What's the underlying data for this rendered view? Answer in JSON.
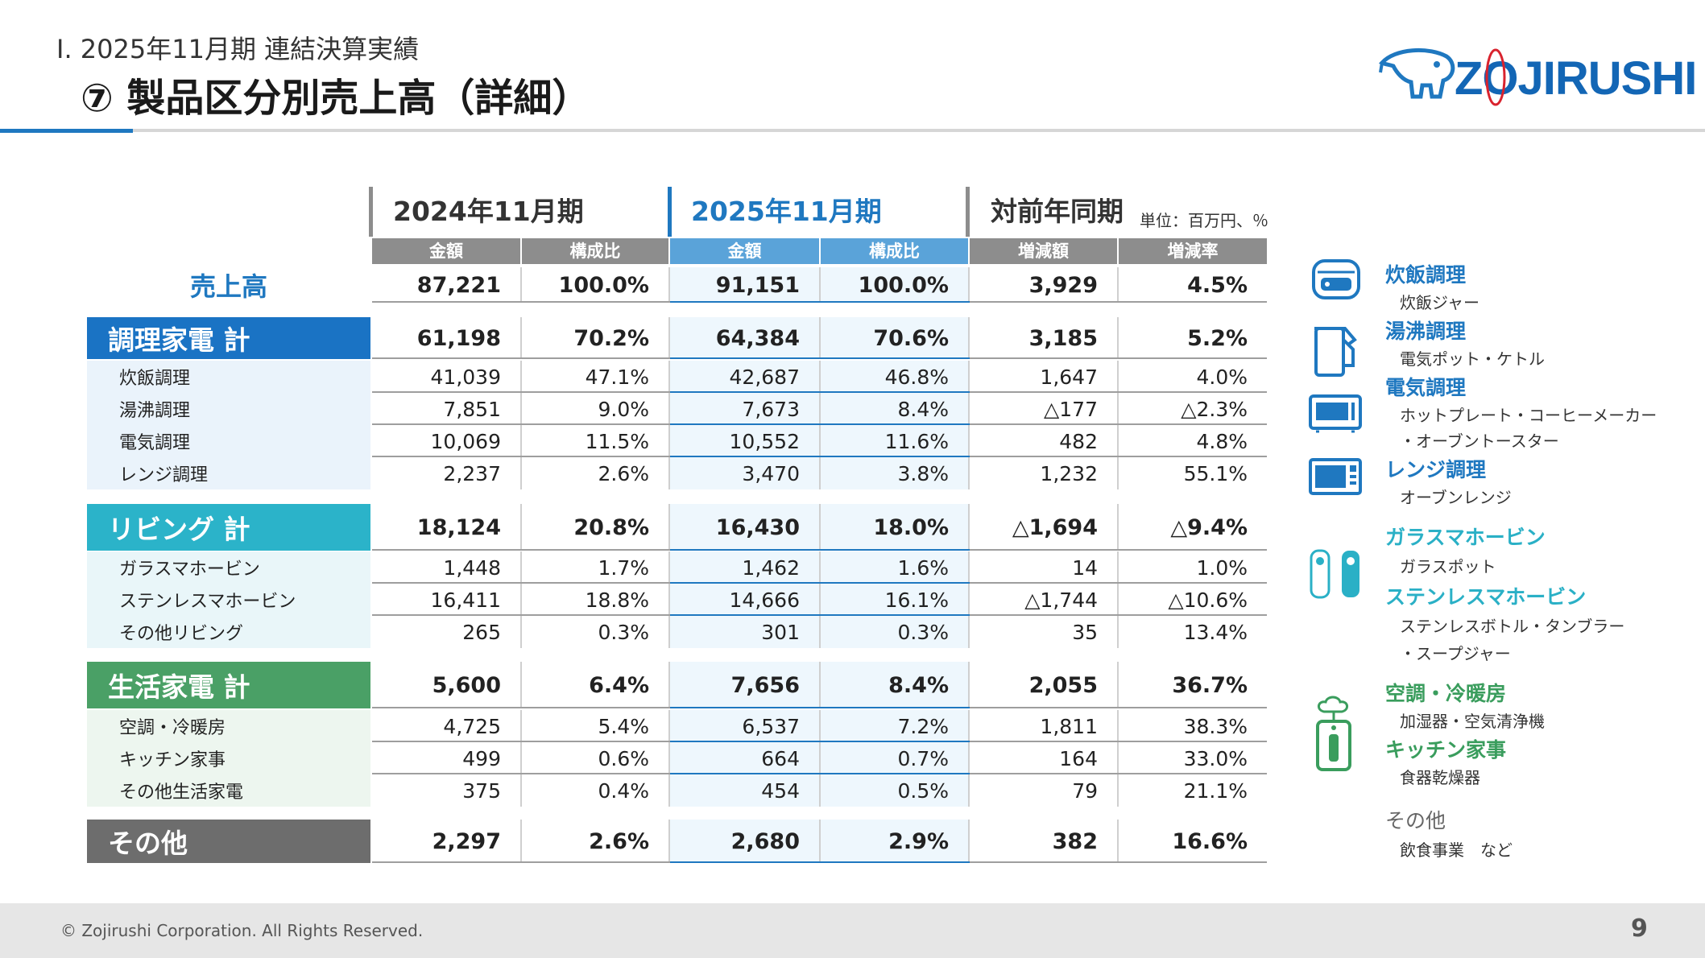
{
  "header": {
    "section": "Ⅰ. 2025年11月期  連結決算実績",
    "title": "⑦ 製品区分別売上高（詳細）",
    "logo_text": "ZOJIRUSHI"
  },
  "table": {
    "periods": {
      "prev": "2024年11月期",
      "curr": "2025年11月期",
      "yoy": "対前年同期",
      "unit": "単位：百万円、％"
    },
    "columns": [
      "金額",
      "構成比",
      "金額",
      "構成比",
      "増減額",
      "増減率"
    ],
    "total": {
      "label": "売上高",
      "values": [
        "87,221",
        "100.0%",
        "91,151",
        "100.0%",
        "3,929",
        "4.5%"
      ]
    },
    "segments": [
      {
        "label": "調理家電 計",
        "color": "#1a73c4",
        "values": [
          "61,198",
          "70.2%",
          "64,384",
          "70.6%",
          "3,185",
          "5.2%"
        ],
        "items": [
          {
            "label": "炊飯調理",
            "values": [
              "41,039",
              "47.1%",
              "42,687",
              "46.8%",
              "1,647",
              "4.0%"
            ]
          },
          {
            "label": "湯沸調理",
            "values": [
              "7,851",
              "9.0%",
              "7,673",
              "8.4%",
              "△177",
              "△2.3%"
            ]
          },
          {
            "label": "電気調理",
            "values": [
              "10,069",
              "11.5%",
              "10,552",
              "11.6%",
              "482",
              "4.8%"
            ]
          },
          {
            "label": "レンジ調理",
            "values": [
              "2,237",
              "2.6%",
              "3,470",
              "3.8%",
              "1,232",
              "55.1%"
            ]
          }
        ]
      },
      {
        "label": "リビング 計",
        "color": "#2bb3c9",
        "values": [
          "18,124",
          "20.8%",
          "16,430",
          "18.0%",
          "△1,694",
          "△9.4%"
        ],
        "items": [
          {
            "label": "ガラスマホービン",
            "values": [
              "1,448",
              "1.7%",
              "1,462",
              "1.6%",
              "14",
              "1.0%"
            ]
          },
          {
            "label": "ステンレスマホービン",
            "values": [
              "16,411",
              "18.8%",
              "14,666",
              "16.1%",
              "△1,744",
              "△10.6%"
            ]
          },
          {
            "label": "その他リビング",
            "values": [
              "265",
              "0.3%",
              "301",
              "0.3%",
              "35",
              "13.4%"
            ]
          }
        ]
      },
      {
        "label": "生活家電 計",
        "color": "#4aa066",
        "values": [
          "5,600",
          "6.4%",
          "7,656",
          "8.4%",
          "2,055",
          "36.7%"
        ],
        "items": [
          {
            "label": "空調・冷暖房",
            "values": [
              "4,725",
              "5.4%",
              "6,537",
              "7.2%",
              "1,811",
              "38.3%"
            ]
          },
          {
            "label": "キッチン家事",
            "values": [
              "499",
              "0.6%",
              "664",
              "0.7%",
              "164",
              "33.0%"
            ]
          },
          {
            "label": "その他生活家電",
            "values": [
              "375",
              "0.4%",
              "454",
              "0.5%",
              "79",
              "21.1%"
            ]
          }
        ]
      }
    ],
    "other": {
      "label": "その他",
      "color": "#6d6d6d",
      "values": [
        "2,297",
        "2.6%",
        "2,680",
        "2.9%",
        "382",
        "16.6%"
      ]
    }
  },
  "legend": [
    {
      "head": "炊飯調理",
      "sub": [
        "炊飯ジャー"
      ]
    },
    {
      "head": "湯沸調理",
      "sub": [
        "電気ポット・ケトル"
      ]
    },
    {
      "head": "電気調理",
      "sub": [
        "ホットプレート・コーヒーメーカー",
        "・オーブントースター"
      ]
    },
    {
      "head": "レンジ調理",
      "sub": [
        "オーブンレンジ"
      ]
    },
    {
      "head": "ガラスマホービン",
      "sub": [
        "ガラスポット"
      ]
    },
    {
      "head": "ステンレスマホービン",
      "sub": [
        "ステンレスボトル・タンブラー",
        "・スープジャー"
      ]
    },
    {
      "head": "空調・冷暖房",
      "sub": [
        "加湿器・空気清浄機"
      ]
    },
    {
      "head": "キッチン家事",
      "sub": [
        "食器乾燥器"
      ]
    },
    {
      "head": "その他",
      "sub": [
        "飲食事業　など"
      ]
    }
  ],
  "footer": {
    "copyright": "© Zojirushi Corporation. All Rights Reserved.",
    "page": "9"
  }
}
